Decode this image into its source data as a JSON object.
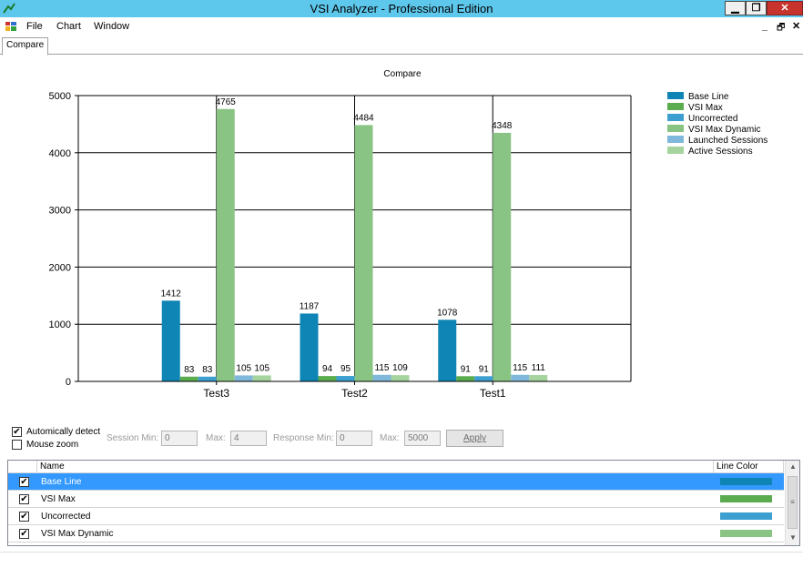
{
  "window": {
    "title": "VSI Analyzer - Professional Edition",
    "minimize": "▁",
    "maximize": "❐",
    "close": "✕"
  },
  "menu": {
    "items": [
      "File",
      "Chart",
      "Window"
    ],
    "mdi_min": "_",
    "mdi_restore": "🗗",
    "mdi_close": "✕"
  },
  "tabs": [
    {
      "label": "Compare",
      "active": true
    }
  ],
  "chart_data": {
    "type": "bar",
    "title": "Compare",
    "categories": [
      "Test3",
      "Test2",
      "Test1"
    ],
    "ylim": [
      0,
      5000
    ],
    "yticks": [
      0,
      1000,
      2000,
      3000,
      4000,
      5000
    ],
    "grid": true,
    "legend_position": "top-right",
    "series": [
      {
        "name": "Base Line",
        "color": "#0f85b5",
        "values": [
          1412,
          1187,
          1078
        ]
      },
      {
        "name": "VSI Max",
        "color": "#5aac4e",
        "values": [
          83,
          94,
          91
        ]
      },
      {
        "name": "Uncorrected",
        "color": "#3d9fd0",
        "values": [
          83,
          95,
          91
        ]
      },
      {
        "name": "VSI Max Dynamic",
        "color": "#8ac484",
        "values": [
          4765,
          4484,
          4348
        ]
      },
      {
        "name": "Launched Sessions",
        "color": "#80b8dc",
        "values": [
          105,
          115,
          115
        ]
      },
      {
        "name": "Active Sessions",
        "color": "#a6d49e",
        "values": [
          105,
          109,
          111
        ]
      }
    ]
  },
  "controls": {
    "auto_detect": {
      "label": "Automically detect",
      "checked": true
    },
    "mouse_zoom": {
      "label": "Mouse zoom",
      "checked": false
    },
    "session_min_label": "Session Min:",
    "session_min_value": "0",
    "max_label": "Max:",
    "session_max_value": "4",
    "response_min_label": "Response Min:",
    "response_min_value": "0",
    "response_max_label": "Max:",
    "response_max_value": "5000",
    "apply_label": "Apply",
    "check_mark": "✔"
  },
  "grid": {
    "headers": {
      "name": "Name",
      "color": "Line Color"
    },
    "rows": [
      {
        "name": "Base Line",
        "checked": true,
        "selected": true,
        "color": "#0f85b5"
      },
      {
        "name": "VSI Max",
        "checked": true,
        "selected": false,
        "color": "#5aac4e"
      },
      {
        "name": "Uncorrected",
        "checked": true,
        "selected": false,
        "color": "#3d9fd0"
      },
      {
        "name": "VSI Max Dynamic",
        "checked": true,
        "selected": false,
        "color": "#8ac484"
      }
    ]
  }
}
